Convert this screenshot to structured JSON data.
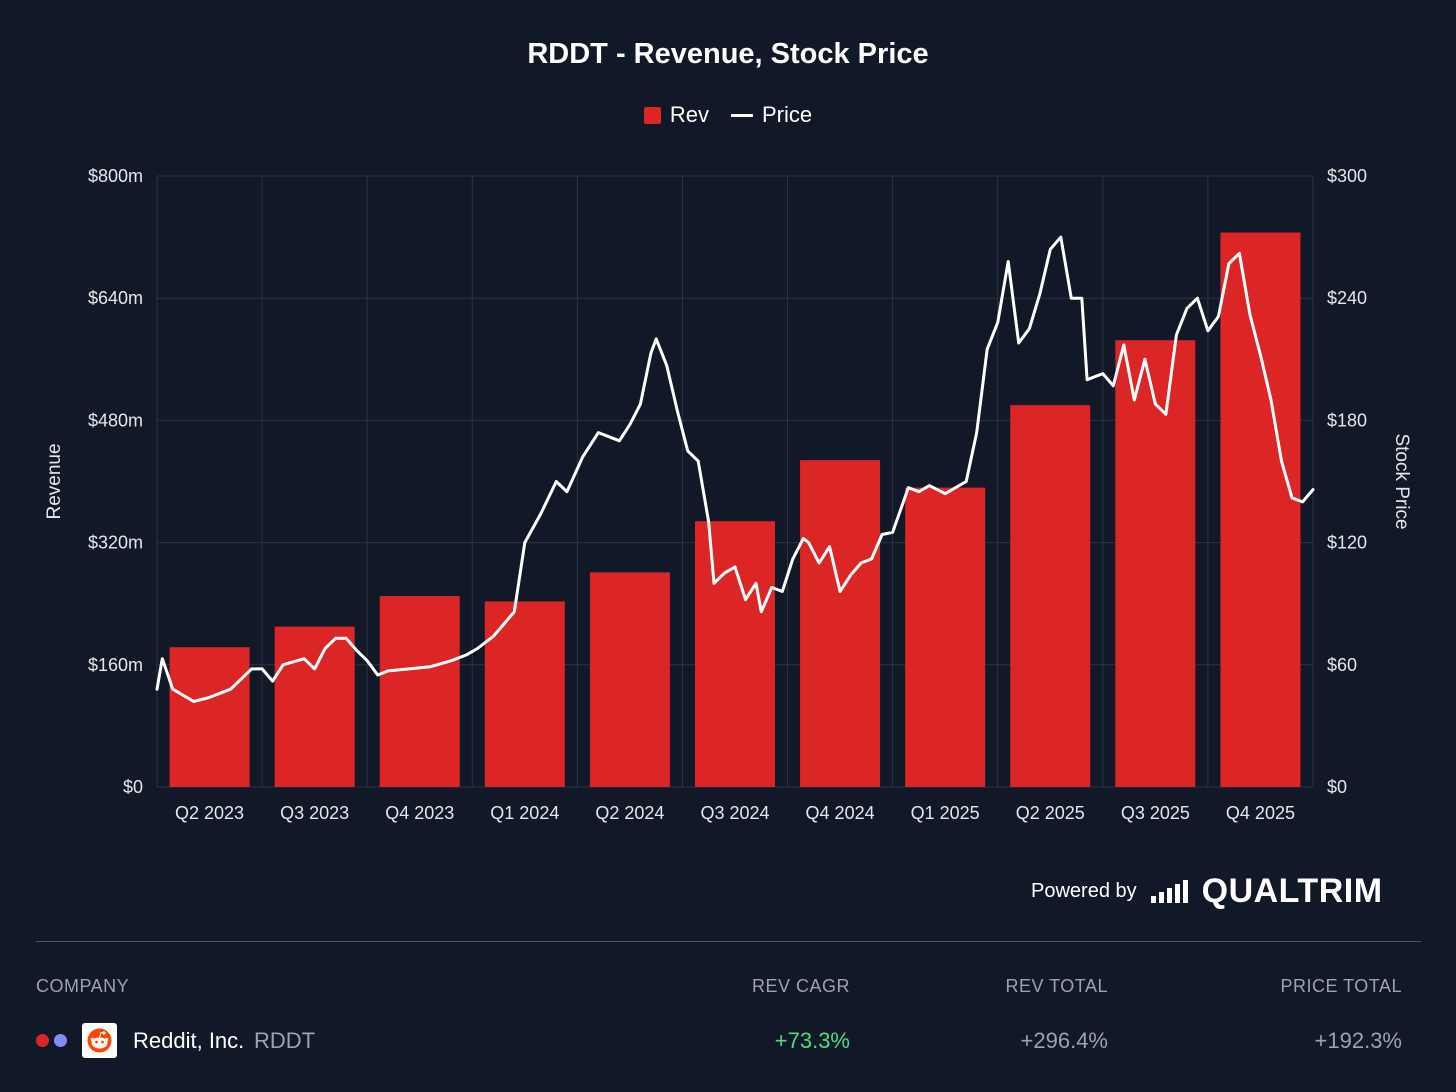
{
  "chart_data": {
    "type": "bar",
    "title": "RDDT - Revenue, Stock Price",
    "categories": [
      "Q2 2023",
      "Q3 2023",
      "Q4 2023",
      "Q1 2024",
      "Q2 2024",
      "Q3 2024",
      "Q4 2024",
      "Q1 2025",
      "Q2 2025",
      "Q3 2025",
      "Q4 2025"
    ],
    "series": [
      {
        "name": "Rev",
        "type": "bar",
        "axis": "left",
        "color": "#dc2626",
        "values": [
          183,
          210,
          250,
          243,
          281,
          348,
          428,
          392,
          500,
          585,
          726
        ]
      },
      {
        "name": "Price",
        "type": "line",
        "axis": "right",
        "color": "#ffffff",
        "points": [
          [
            0,
            48
          ],
          [
            0.05,
            63
          ],
          [
            0.15,
            48
          ],
          [
            0.35,
            42
          ],
          [
            0.5,
            44
          ],
          [
            0.7,
            48
          ],
          [
            0.9,
            58
          ],
          [
            1.0,
            58
          ],
          [
            1.1,
            52
          ],
          [
            1.2,
            60
          ],
          [
            1.4,
            63
          ],
          [
            1.5,
            58
          ],
          [
            1.6,
            68
          ],
          [
            1.7,
            73
          ],
          [
            1.8,
            73
          ],
          [
            1.9,
            67
          ],
          [
            2.0,
            62
          ],
          [
            2.1,
            55
          ],
          [
            2.2,
            57
          ],
          [
            2.4,
            58
          ],
          [
            2.6,
            59
          ],
          [
            2.8,
            62
          ],
          [
            2.95,
            65
          ],
          [
            3.05,
            68
          ],
          [
            3.2,
            74
          ],
          [
            3.3,
            80
          ],
          [
            3.4,
            86
          ],
          [
            3.5,
            120
          ],
          [
            3.65,
            134
          ],
          [
            3.8,
            150
          ],
          [
            3.9,
            145
          ],
          [
            4.05,
            162
          ],
          [
            4.2,
            174
          ],
          [
            4.3,
            172
          ],
          [
            4.4,
            170
          ],
          [
            4.5,
            178
          ],
          [
            4.6,
            188
          ],
          [
            4.7,
            213
          ],
          [
            4.75,
            220
          ],
          [
            4.85,
            207
          ],
          [
            4.95,
            185
          ],
          [
            5.05,
            165
          ],
          [
            5.15,
            160
          ],
          [
            5.25,
            130
          ],
          [
            5.3,
            100
          ],
          [
            5.4,
            105
          ],
          [
            5.5,
            108
          ],
          [
            5.6,
            92
          ],
          [
            5.7,
            100
          ],
          [
            5.75,
            86
          ],
          [
            5.85,
            98
          ],
          [
            5.95,
            96
          ],
          [
            6.05,
            112
          ],
          [
            6.15,
            122
          ],
          [
            6.2,
            120
          ],
          [
            6.3,
            110
          ],
          [
            6.4,
            118
          ],
          [
            6.5,
            96
          ],
          [
            6.6,
            104
          ],
          [
            6.7,
            110
          ],
          [
            6.8,
            112
          ],
          [
            6.9,
            124
          ],
          [
            7.0,
            125
          ],
          [
            7.15,
            147
          ],
          [
            7.25,
            145
          ],
          [
            7.35,
            148
          ],
          [
            7.5,
            144
          ],
          [
            7.6,
            147
          ],
          [
            7.7,
            150
          ],
          [
            7.8,
            174
          ],
          [
            7.9,
            215
          ],
          [
            8.0,
            228
          ],
          [
            8.1,
            258
          ],
          [
            8.2,
            218
          ],
          [
            8.3,
            225
          ],
          [
            8.4,
            242
          ],
          [
            8.5,
            264
          ],
          [
            8.6,
            270
          ],
          [
            8.7,
            240
          ],
          [
            8.8,
            240
          ],
          [
            8.85,
            200
          ],
          [
            9.0,
            203
          ],
          [
            9.1,
            197
          ],
          [
            9.2,
            217
          ],
          [
            9.3,
            190
          ],
          [
            9.4,
            210
          ],
          [
            9.5,
            188
          ],
          [
            9.6,
            183
          ],
          [
            9.7,
            222
          ],
          [
            9.8,
            235
          ],
          [
            9.9,
            240
          ],
          [
            10.0,
            224
          ],
          [
            10.1,
            231
          ],
          [
            10.2,
            257
          ],
          [
            10.3,
            262
          ],
          [
            10.4,
            232
          ],
          [
            10.5,
            212
          ],
          [
            10.6,
            190
          ],
          [
            10.7,
            160
          ],
          [
            10.8,
            142
          ],
          [
            10.9,
            140
          ],
          [
            11.0,
            146
          ]
        ]
      }
    ],
    "ylabel": "Revenue",
    "y2label": "Stock Price",
    "ylim": [
      0,
      800
    ],
    "y2lim": [
      0,
      300
    ],
    "yticks": [
      "$0",
      "$160m",
      "$320m",
      "$480m",
      "$640m",
      "$800m"
    ],
    "y2ticks": [
      "$0",
      "$60",
      "$120",
      "$180",
      "$240",
      "$300"
    ],
    "grid": true,
    "legend_position": "top-center"
  },
  "footer": {
    "powered_by": "Powered by",
    "brand": "QUALTRIM"
  },
  "table": {
    "headers": {
      "company": "COMPANY",
      "rev_cagr": "REV CAGR",
      "rev_total": "REV TOTAL",
      "price_total": "PRICE TOTAL"
    },
    "row": {
      "name": "Reddit, Inc.",
      "ticker": "RDDT",
      "rev_cagr": "+73.3%",
      "rev_total": "+296.4%",
      "price_total": "+192.3%",
      "dot_colors": [
        "#dc2626",
        "#818cf8"
      ],
      "logo_icon": "reddit-alien-icon",
      "positive_color": "#4ade80"
    }
  }
}
